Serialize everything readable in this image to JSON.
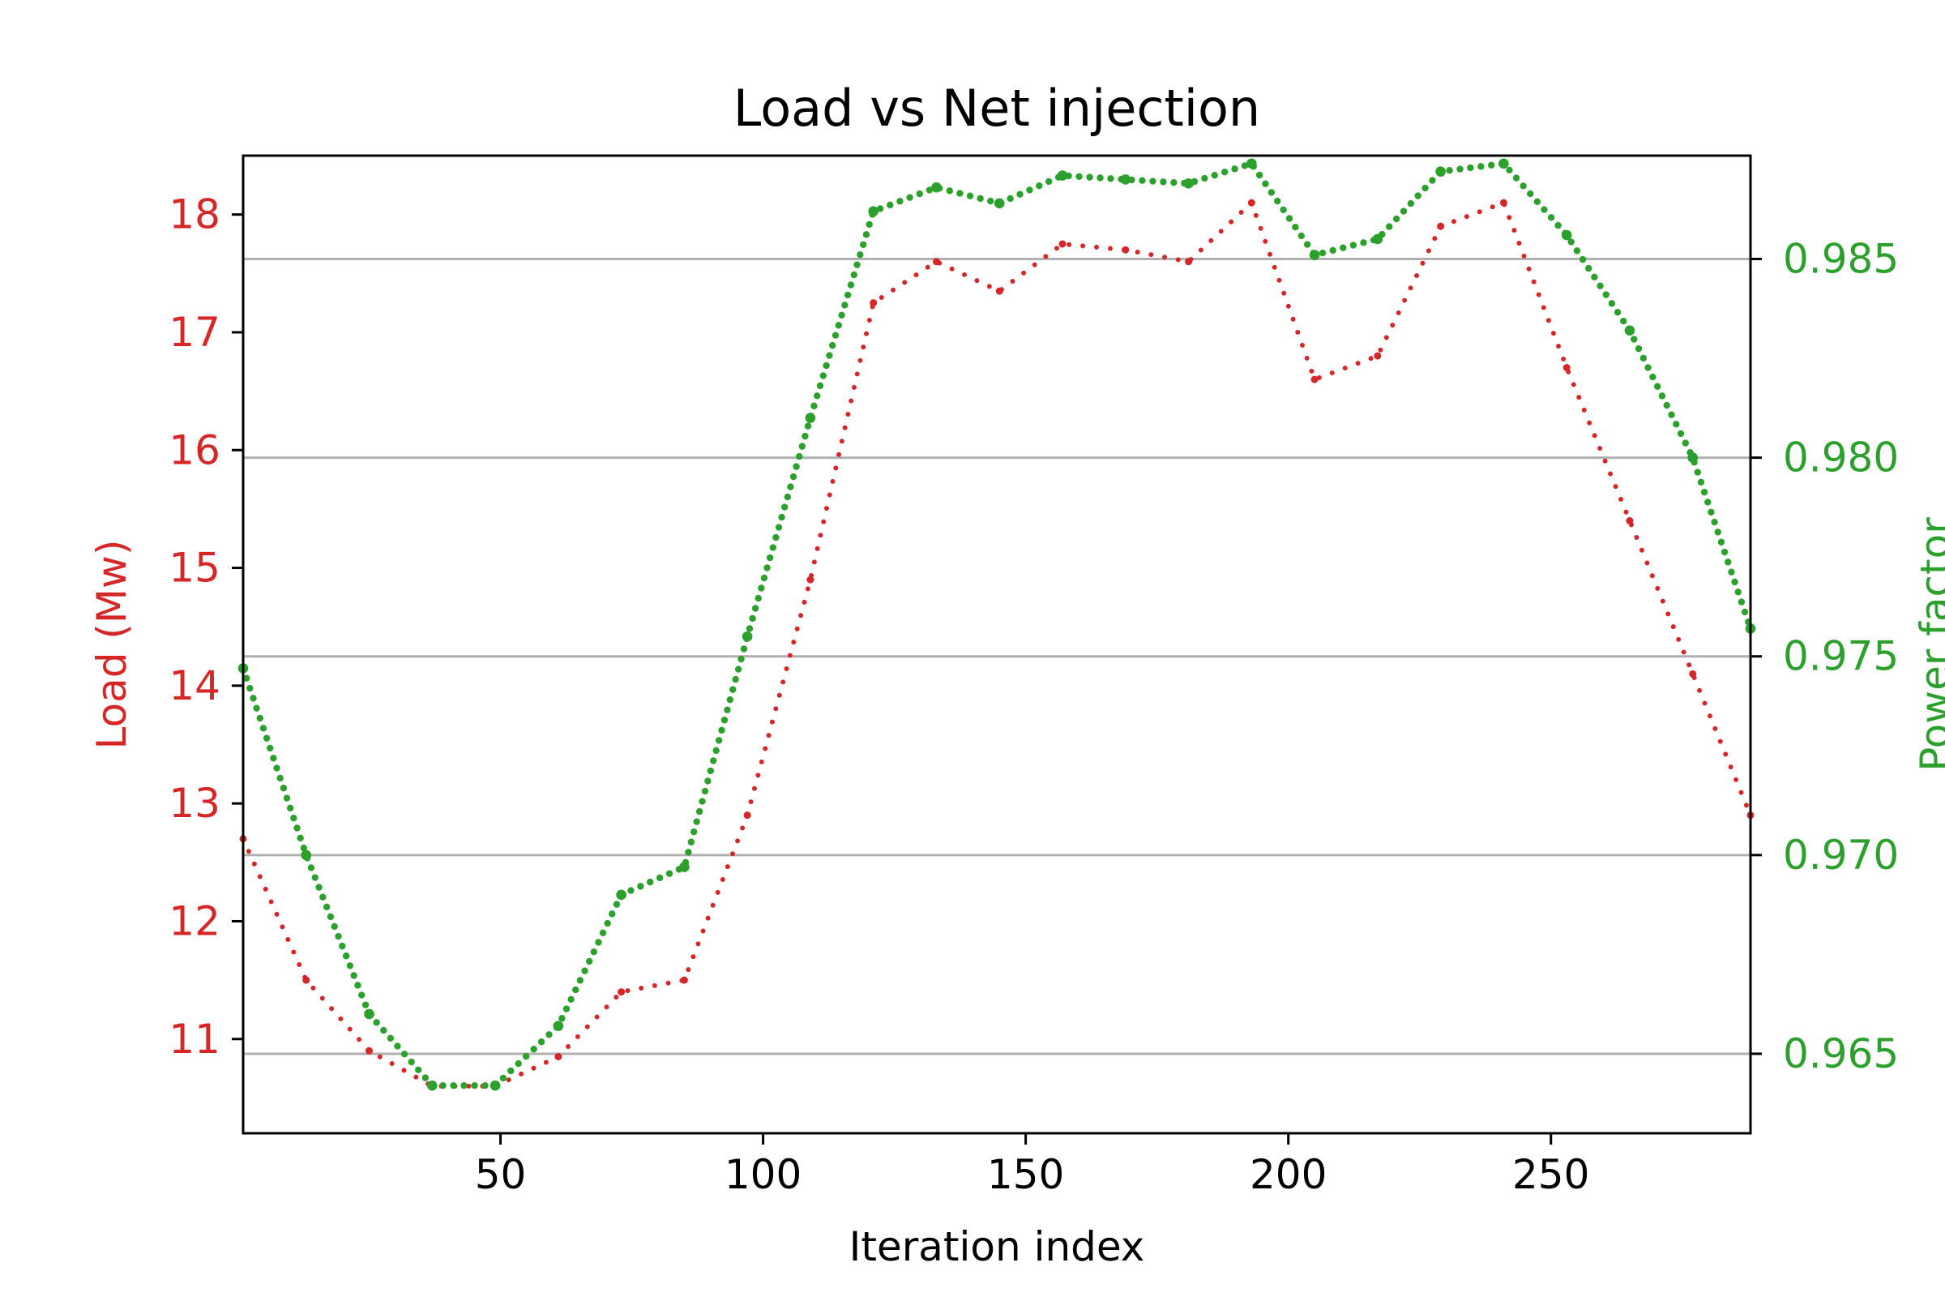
{
  "chart_data": {
    "type": "line",
    "title": "Load vs Net injection",
    "xlabel": "Iteration index",
    "ylabel": "Load (Mw)",
    "y2label": "Power factor",
    "xlim": [
      1,
      288
    ],
    "ylim": [
      10.2,
      18.5
    ],
    "y2lim": [
      0.963,
      0.9876
    ],
    "x_ticks": [
      50,
      100,
      150,
      200,
      250
    ],
    "y_ticks": [
      11,
      12,
      13,
      14,
      15,
      16,
      17,
      18
    ],
    "y2_ticks": [
      0.965,
      0.97,
      0.975,
      0.98,
      0.985
    ],
    "y2_tick_labels": [
      "0.965",
      "0.970",
      "0.975",
      "0.980",
      "0.985"
    ],
    "grid": "horizontal, right axis",
    "colors": {
      "load": "#d62728",
      "power_factor": "#2ca02c",
      "grid": "#b0b0b0",
      "axes": "#000000"
    },
    "series": [
      {
        "axis": "left",
        "x": [
          1,
          13,
          25,
          37,
          49,
          61,
          73,
          85,
          97,
          109,
          121,
          133,
          145,
          157,
          169,
          181,
          193,
          205,
          217,
          229,
          241,
          253,
          265,
          277,
          288
        ],
        "values": [
          12.7,
          11.5,
          10.9,
          10.6,
          10.6,
          10.85,
          11.4,
          11.5,
          12.9,
          14.9,
          17.25,
          17.6,
          17.35,
          17.75,
          17.7,
          17.6,
          18.1,
          16.6,
          16.8,
          17.9,
          18.1,
          16.7,
          15.4,
          14.1,
          12.9
        ]
      },
      {
        "axis": "right",
        "x": [
          1,
          13,
          25,
          37,
          49,
          61,
          73,
          85,
          97,
          109,
          121,
          133,
          145,
          157,
          169,
          181,
          193,
          205,
          217,
          229,
          241,
          253,
          265,
          277,
          288
        ],
        "values": [
          0.9747,
          0.97,
          0.966,
          0.9642,
          0.9642,
          0.9657,
          0.969,
          0.9697,
          0.9755,
          0.981,
          0.9862,
          0.9868,
          0.9864,
          0.9871,
          0.987,
          0.9869,
          0.9874,
          0.9851,
          0.9855,
          0.9872,
          0.9874,
          0.9856,
          0.9832,
          0.98,
          0.9757
        ]
      }
    ]
  }
}
